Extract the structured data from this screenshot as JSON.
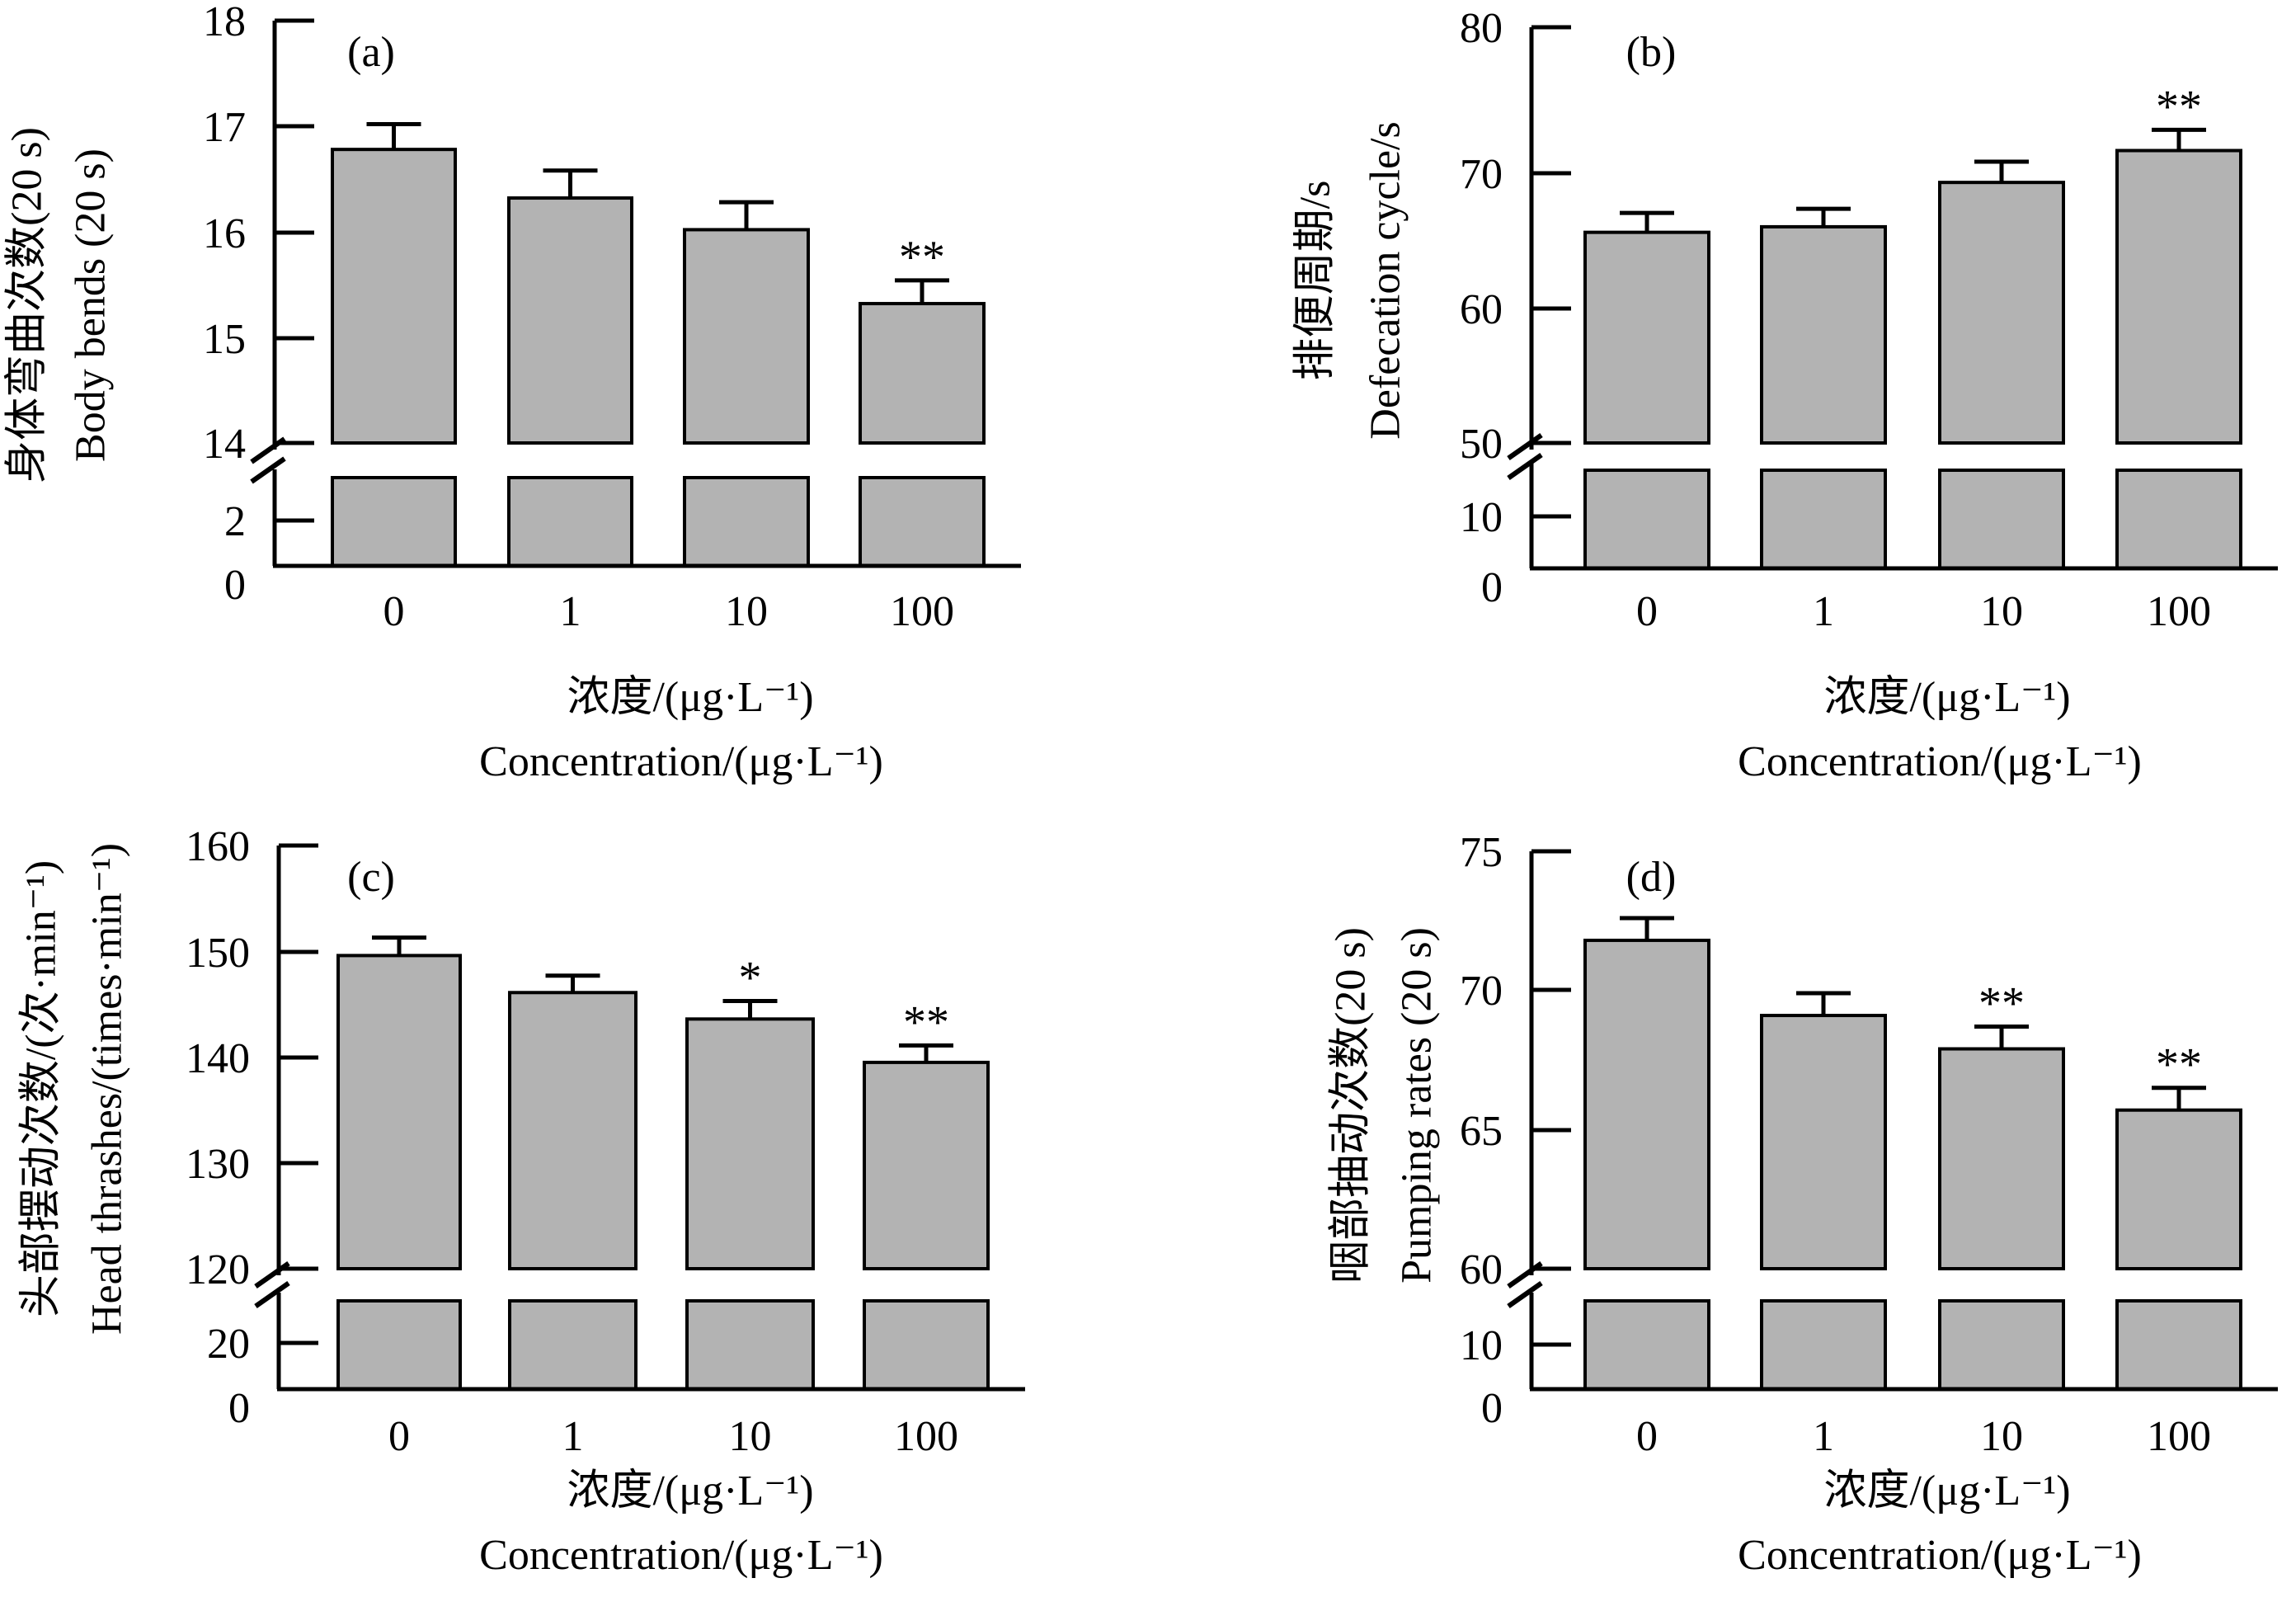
{
  "chart_data": [
    {
      "type": "bar",
      "panel_label": "(a)",
      "categories": [
        "0",
        "1",
        "10",
        "100"
      ],
      "values": [
        16.78,
        16.32,
        16.02,
        15.32
      ],
      "errors": [
        0.24,
        0.26,
        0.26,
        0.22
      ],
      "significance": [
        "",
        "",
        "",
        "**"
      ],
      "yticks": [
        "18",
        "17",
        "16",
        "15",
        "14",
        "2",
        "0"
      ],
      "ylabel_cn": "身体弯曲次数(20 s)",
      "ylabel_en": "Body bends (20 s)",
      "xlabel_cn": "浓度/(μg·L⁻¹)",
      "xlabel_en": "Concentration/(μg·L⁻¹)",
      "y_range_upper": [
        14,
        18
      ],
      "y_range_lower": [
        0,
        2
      ]
    },
    {
      "type": "bar",
      "panel_label": "(b)",
      "categories": [
        "0",
        "1",
        "10",
        "100"
      ],
      "values": [
        65.2,
        65.6,
        68.8,
        71.1
      ],
      "errors": [
        1.4,
        1.3,
        1.5,
        1.5
      ],
      "significance": [
        "",
        "",
        "",
        "**"
      ],
      "yticks": [
        "80",
        "70",
        "60",
        "50",
        "10",
        "0"
      ],
      "ylabel_cn": "排便周期/s",
      "ylabel_en": "Defecation cycle/s",
      "xlabel_cn": "浓度/(μg·L⁻¹)",
      "xlabel_en": "Concentration/(μg·L⁻¹)",
      "y_range_upper": [
        50,
        80
      ],
      "y_range_lower": [
        0,
        10
      ]
    },
    {
      "type": "bar",
      "panel_label": "(c)",
      "categories": [
        "0",
        "1",
        "10",
        "100"
      ],
      "values": [
        149.6,
        146.1,
        143.6,
        139.5
      ],
      "errors": [
        1.7,
        1.6,
        1.7,
        1.6
      ],
      "significance": [
        "",
        "",
        "*",
        "**"
      ],
      "yticks": [
        "160",
        "150",
        "140",
        "130",
        "120",
        "20",
        "0"
      ],
      "ylabel_cn": "头部摆动次数/(次·min⁻¹)",
      "ylabel_en": "Head thrashes/(times·min⁻¹)",
      "xlabel_cn": "浓度/(μg·L⁻¹)",
      "xlabel_en": "Concentration/(μg·L⁻¹)",
      "y_range_upper": [
        120,
        160
      ],
      "y_range_lower": [
        0,
        20
      ]
    },
    {
      "type": "bar",
      "panel_label": "(d)",
      "categories": [
        "0",
        "1",
        "10",
        "100"
      ],
      "values": [
        71.8,
        69.1,
        67.9,
        65.7
      ],
      "errors": [
        0.8,
        0.8,
        0.8,
        0.8
      ],
      "significance": [
        "",
        "",
        "**",
        "**"
      ],
      "yticks": [
        "75",
        "70",
        "65",
        "60",
        "10",
        "0"
      ],
      "ylabel_cn": "咽部抽动次数(20 s)",
      "ylabel_en": "Pumping rates (20 s)",
      "xlabel_cn": "浓度/(μg·L⁻¹)",
      "xlabel_en": "Concentration/(μg·L⁻¹)",
      "y_range_upper": [
        60,
        75
      ],
      "y_range_lower": [
        0,
        10
      ]
    }
  ],
  "colors": {
    "bar_fill": "#b3b3b3",
    "stroke": "#000000",
    "background": "#ffffff"
  }
}
